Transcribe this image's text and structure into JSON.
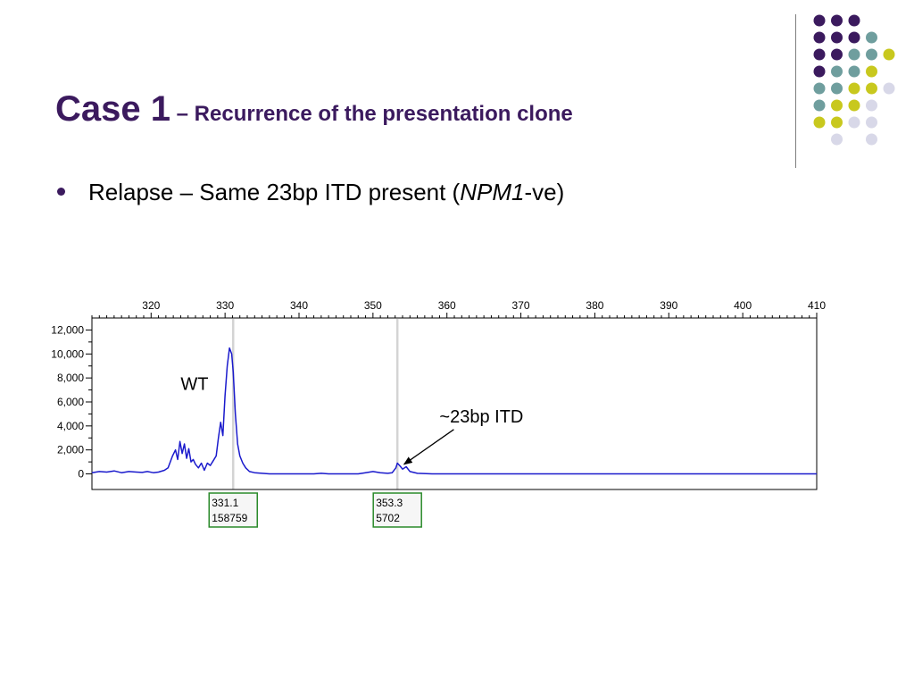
{
  "slide": {
    "title_main": "Case 1",
    "title_sub": " – Recurrence of the presentation clone",
    "bullet": {
      "text_before": "Relapse – Same 23bp ITD present (",
      "text_italic": "NPM1",
      "text_after": "-ve)"
    }
  },
  "colors": {
    "title": "#3b1a5e",
    "trace": "#1a1acc",
    "peak_label_border": "#2a8a2a",
    "dot_purple": "#3b1a5e",
    "dot_teal": "#6f9e9e",
    "dot_yellow": "#c8c81e",
    "dot_lavender": "#d8d8e8"
  },
  "decoration": {
    "dot_grid": [
      [
        "purple",
        "purple",
        "purple",
        "none",
        "none"
      ],
      [
        "purple",
        "purple",
        "purple",
        "teal",
        "none"
      ],
      [
        "purple",
        "purple",
        "teal",
        "teal",
        "yellow"
      ],
      [
        "purple",
        "teal",
        "teal",
        "yellow",
        "none"
      ],
      [
        "teal",
        "teal",
        "yellow",
        "yellow",
        "lavender"
      ],
      [
        "teal",
        "yellow",
        "yellow",
        "lavender",
        "none"
      ],
      [
        "yellow",
        "yellow",
        "lavender",
        "lavender",
        "none"
      ],
      [
        "none",
        "lavender",
        "none",
        "lavender",
        "none"
      ]
    ]
  },
  "chart_data": {
    "type": "line",
    "xlim": [
      312,
      410
    ],
    "ylim": [
      -1300,
      13000
    ],
    "x_ticks": [
      320,
      330,
      340,
      350,
      360,
      370,
      380,
      390,
      400,
      410
    ],
    "y_ticks": [
      0,
      2000,
      4000,
      6000,
      8000,
      10000,
      12000
    ],
    "y_tick_labels": [
      "0",
      "2,000",
      "4,000",
      "6,000",
      "8,000",
      "10,000",
      "12,000"
    ],
    "series": [
      {
        "x": [
          312,
          313,
          314,
          315,
          316,
          317,
          318,
          318.8,
          319.5,
          320.3,
          321,
          321.8,
          322.3,
          322.9,
          323.3,
          323.6,
          323.9,
          324.2,
          324.5,
          324.8,
          325.1,
          325.4,
          325.7,
          326,
          326.4,
          326.8,
          327.2,
          327.6,
          328,
          328.4,
          328.8,
          329.1,
          329.4,
          329.7,
          330,
          330.3,
          330.6,
          330.9,
          331.1,
          331.4,
          331.7,
          332,
          332.4,
          332.8,
          333.3,
          334,
          335,
          336,
          337,
          338,
          339,
          340,
          341,
          342,
          343,
          344,
          345,
          346,
          347,
          348,
          349,
          350,
          351,
          352,
          352.6,
          353.1,
          353.3,
          353.6,
          354,
          354.5,
          355,
          356,
          358,
          360,
          370,
          380,
          390,
          400,
          410
        ],
        "y": [
          100,
          200,
          150,
          250,
          100,
          200,
          150,
          120,
          200,
          100,
          150,
          300,
          500,
          1500,
          2000,
          1200,
          2700,
          1700,
          2500,
          1300,
          2100,
          1000,
          1200,
          800,
          500,
          900,
          300,
          900,
          700,
          1100,
          1500,
          3000,
          4300,
          3200,
          6500,
          9000,
          10500,
          10000,
          8500,
          5000,
          2500,
          1500,
          900,
          500,
          200,
          100,
          50,
          0,
          0,
          0,
          0,
          0,
          0,
          0,
          50,
          0,
          0,
          0,
          0,
          0,
          100,
          200,
          100,
          50,
          100,
          500,
          900,
          700,
          400,
          600,
          200,
          50,
          0,
          0,
          0,
          0,
          0,
          0,
          0
        ]
      }
    ],
    "peak_markers": [
      {
        "x": 331.1,
        "size": "331.1",
        "area": "158759"
      },
      {
        "x": 353.3,
        "size": "353.3",
        "area": "5702"
      }
    ],
    "annotations": [
      {
        "text": "WT",
        "x": 324,
        "y": 7000
      },
      {
        "text": "~23bp ITD",
        "x": 359,
        "y": 4300,
        "arrow_to": [
          354.2,
          800
        ]
      }
    ]
  }
}
